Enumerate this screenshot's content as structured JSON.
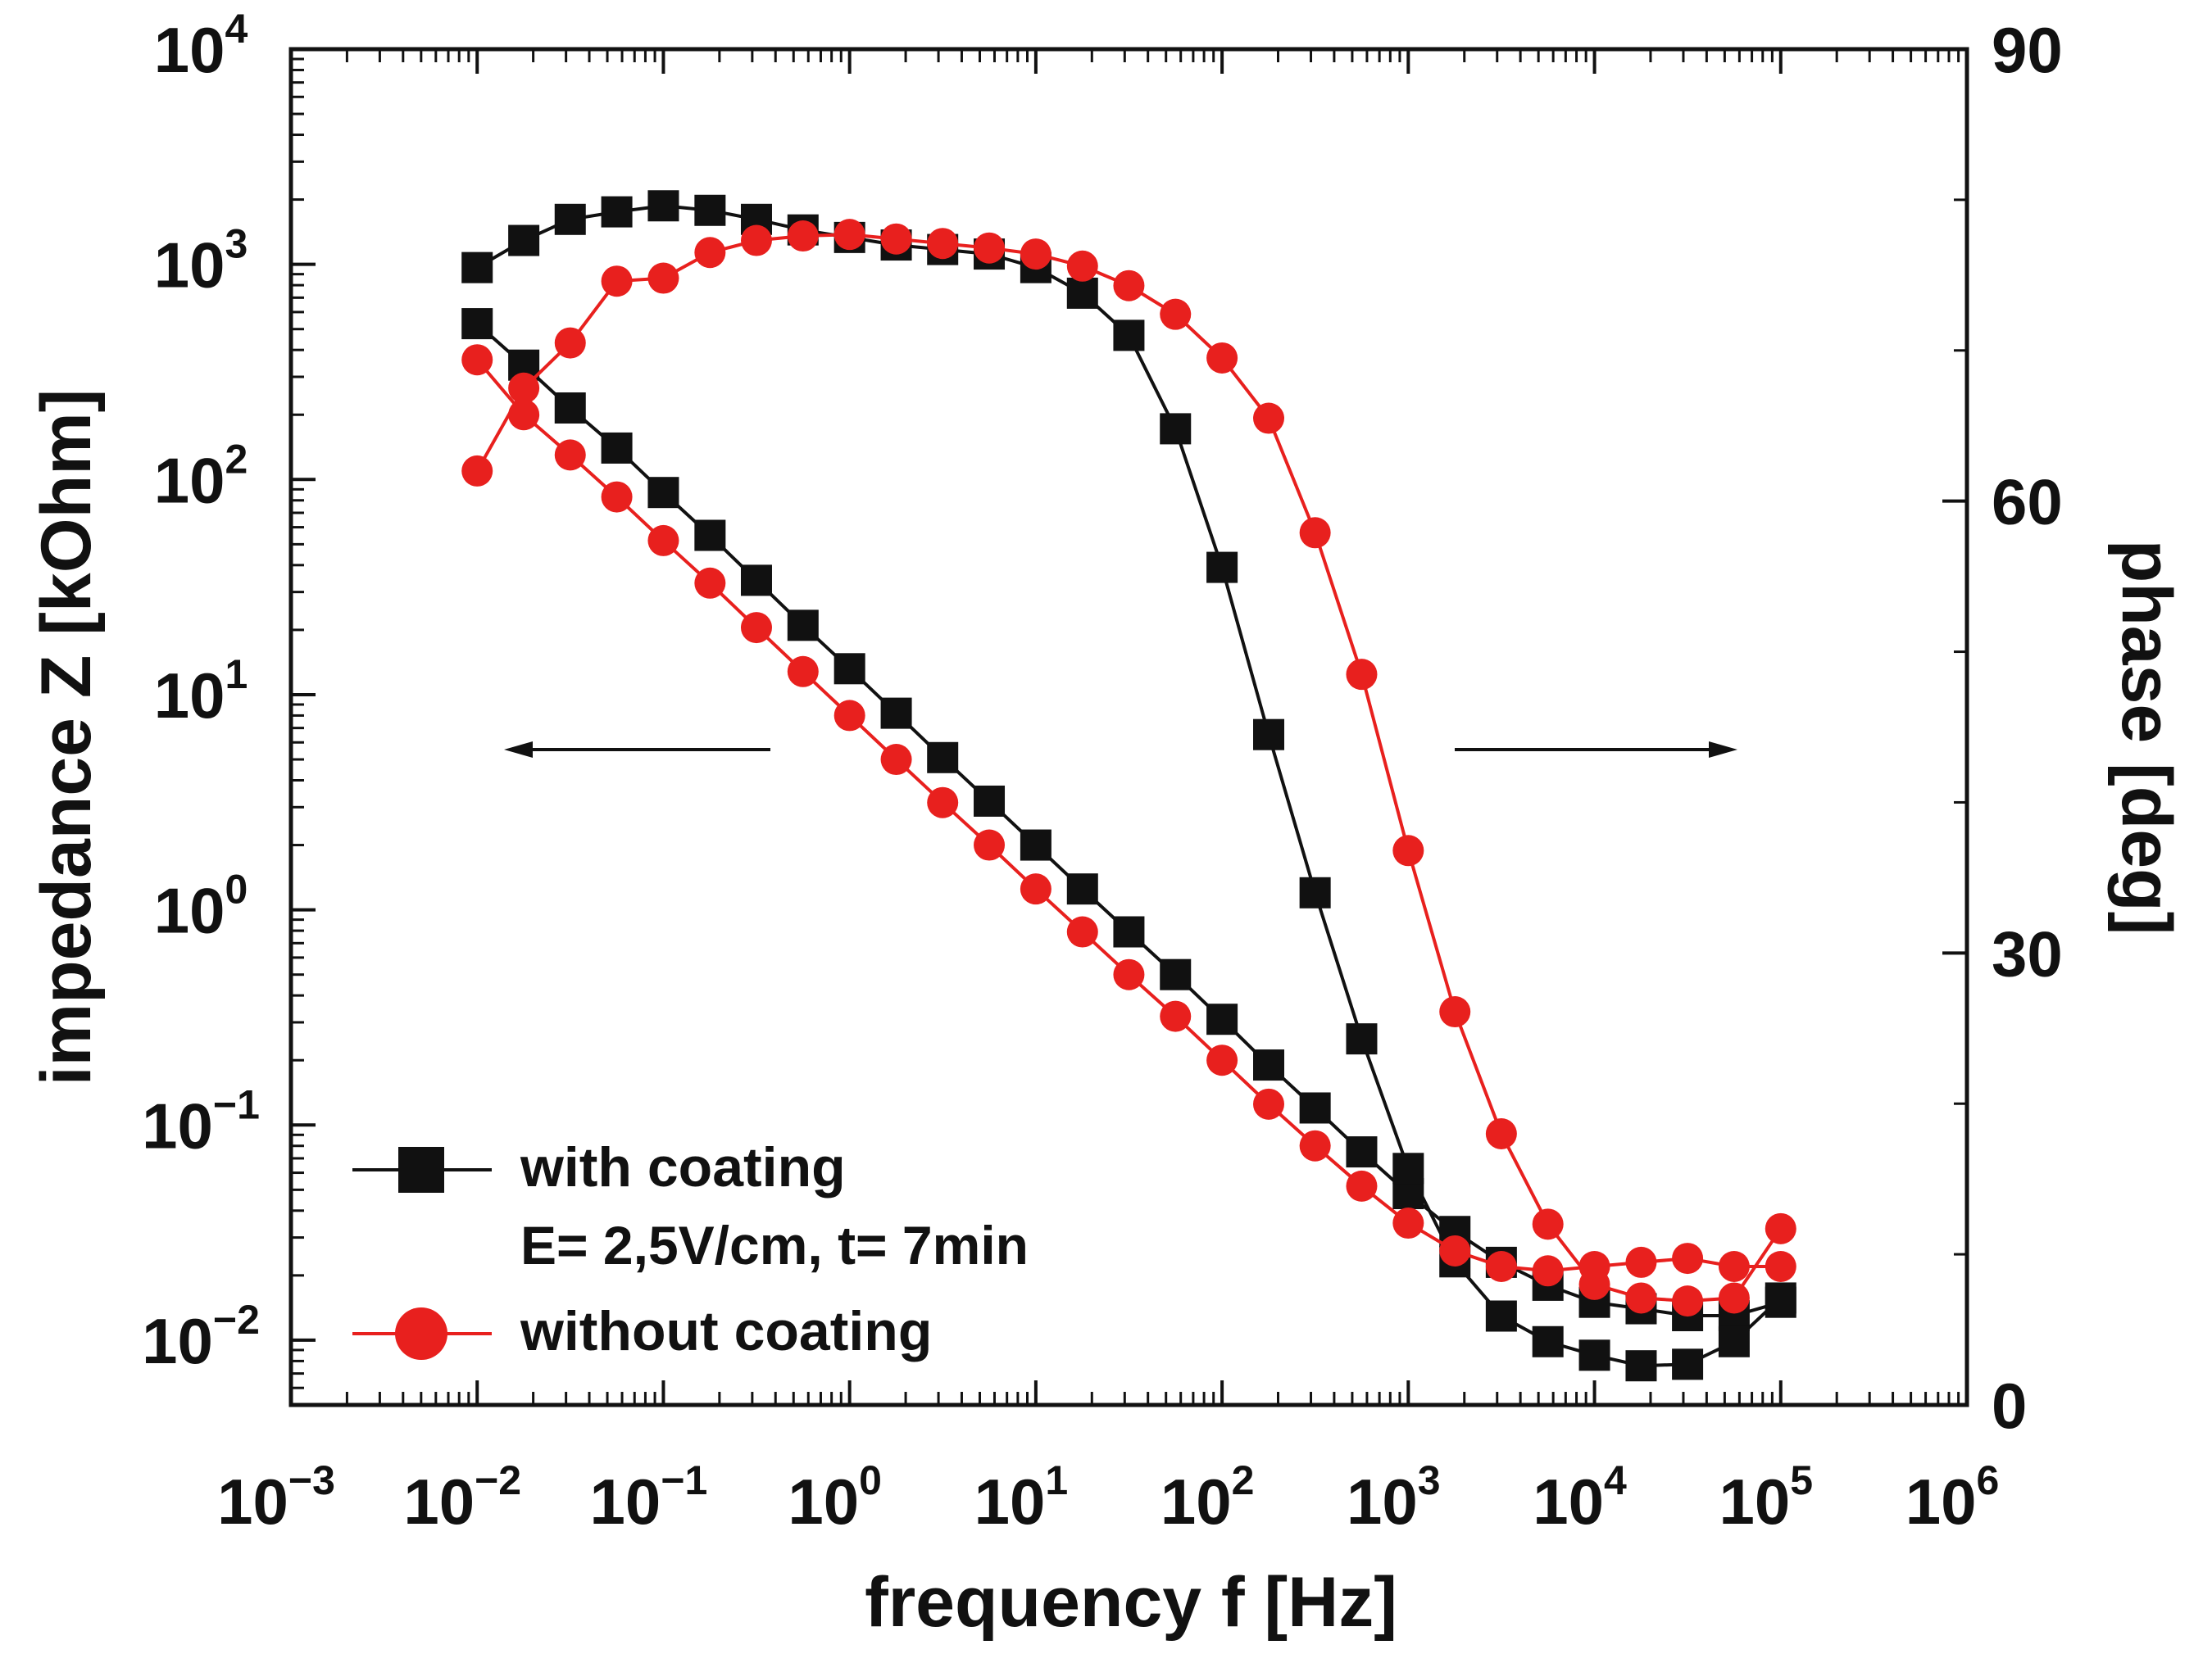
{
  "chart_data": {
    "type": "line",
    "xlabel": "frequency f [Hz]",
    "ylabel": "impedance Z [kOhm]",
    "y2label": "phase [deg]",
    "xscale": "log",
    "yscale": "log",
    "xlim": [
      0.001,
      1000000
    ],
    "ylim": [
      0.005,
      10000
    ],
    "y2lim": [
      0,
      90
    ],
    "x_ticks": [
      {
        "base": "10",
        "exp": "−3",
        "value": 0.001
      },
      {
        "base": "10",
        "exp": "−2",
        "value": 0.01
      },
      {
        "base": "10",
        "exp": "−1",
        "value": 0.1
      },
      {
        "base": "10",
        "exp": "0",
        "value": 1
      },
      {
        "base": "10",
        "exp": "1",
        "value": 10
      },
      {
        "base": "10",
        "exp": "2",
        "value": 100
      },
      {
        "base": "10",
        "exp": "3",
        "value": 1000
      },
      {
        "base": "10",
        "exp": "4",
        "value": 10000
      },
      {
        "base": "10",
        "exp": "5",
        "value": 100000
      },
      {
        "base": "10",
        "exp": "6",
        "value": 1000000
      }
    ],
    "y_ticks": [
      {
        "base": "10",
        "exp": "4",
        "value": 10000
      },
      {
        "base": "10",
        "exp": "3",
        "value": 1000
      },
      {
        "base": "10",
        "exp": "2",
        "value": 100
      },
      {
        "base": "10",
        "exp": "1",
        "value": 10
      },
      {
        "base": "10",
        "exp": "0",
        "value": 1
      },
      {
        "base": "10",
        "exp": "−1",
        "value": 0.1
      },
      {
        "base": "10",
        "exp": "−2",
        "value": 0.01
      }
    ],
    "y2_ticks": [
      {
        "label": "90",
        "value": 90
      },
      {
        "label": "60",
        "value": 60
      },
      {
        "label": "30",
        "value": 30
      },
      {
        "label": "0",
        "value": 0
      }
    ],
    "x": [
      0.01,
      0.0178,
      0.0316,
      0.0562,
      0.1,
      0.178,
      0.316,
      0.562,
      1,
      1.78,
      3.16,
      5.62,
      10,
      17.8,
      31.6,
      56.2,
      100,
      178,
      316,
      562,
      1000,
      1780,
      3160,
      5620,
      10000,
      17800,
      31600,
      56200,
      100000
    ],
    "series": [
      {
        "name": "with coating",
        "color": "#111111",
        "marker": "square",
        "impedance": [
          530,
          340,
          215,
          140,
          87,
          55,
          34,
          21,
          13.2,
          8.2,
          5.1,
          3.2,
          2.0,
          1.25,
          0.79,
          0.5,
          0.31,
          0.19,
          0.12,
          0.075,
          0.048,
          0.032,
          0.023,
          0.018,
          0.015,
          0.014,
          0.013,
          0.013,
          0.015
        ],
        "phase": [
          75.5,
          77.3,
          78.7,
          79.2,
          79.6,
          79.3,
          78.7,
          78.0,
          77.5,
          77.0,
          76.7,
          76.4,
          75.5,
          73.8,
          71.0,
          64.8,
          55.6,
          44.5,
          34.0,
          24.3,
          15.7,
          9.5,
          5.9,
          4.2,
          3.3,
          2.6,
          2.7,
          4.2,
          7.1
        ]
      },
      {
        "name": "without coating",
        "color": "#e8201e",
        "marker": "circle",
        "impedance": [
          360,
          200,
          130,
          83,
          52,
          33,
          20.5,
          12.8,
          8.0,
          5.0,
          3.15,
          2.0,
          1.25,
          0.79,
          0.5,
          0.32,
          0.2,
          0.125,
          0.08,
          0.052,
          0.035,
          0.026,
          0.022,
          0.021,
          0.022,
          0.023,
          0.024,
          0.022,
          0.022
        ],
        "phase": [
          62.0,
          67.5,
          70.5,
          74.6,
          74.8,
          76.5,
          77.3,
          77.6,
          77.7,
          77.4,
          77.1,
          76.8,
          76.4,
          75.6,
          74.3,
          72.4,
          69.5,
          65.5,
          57.9,
          48.5,
          36.8,
          26.1,
          18.0,
          12.0,
          8.0,
          7.1,
          6.9,
          7.1,
          11.7
        ]
      }
    ],
    "legend": {
      "position": "bottom-left",
      "entries": [
        {
          "series": 0,
          "label": "with coating",
          "sublabel": "E= 2,5V/cm, t= 7min"
        },
        {
          "series": 1,
          "label": "without coating"
        }
      ]
    },
    "arrows": [
      {
        "direction": "left",
        "meaning": "impedance axis"
      },
      {
        "direction": "right",
        "meaning": "phase axis"
      }
    ]
  }
}
